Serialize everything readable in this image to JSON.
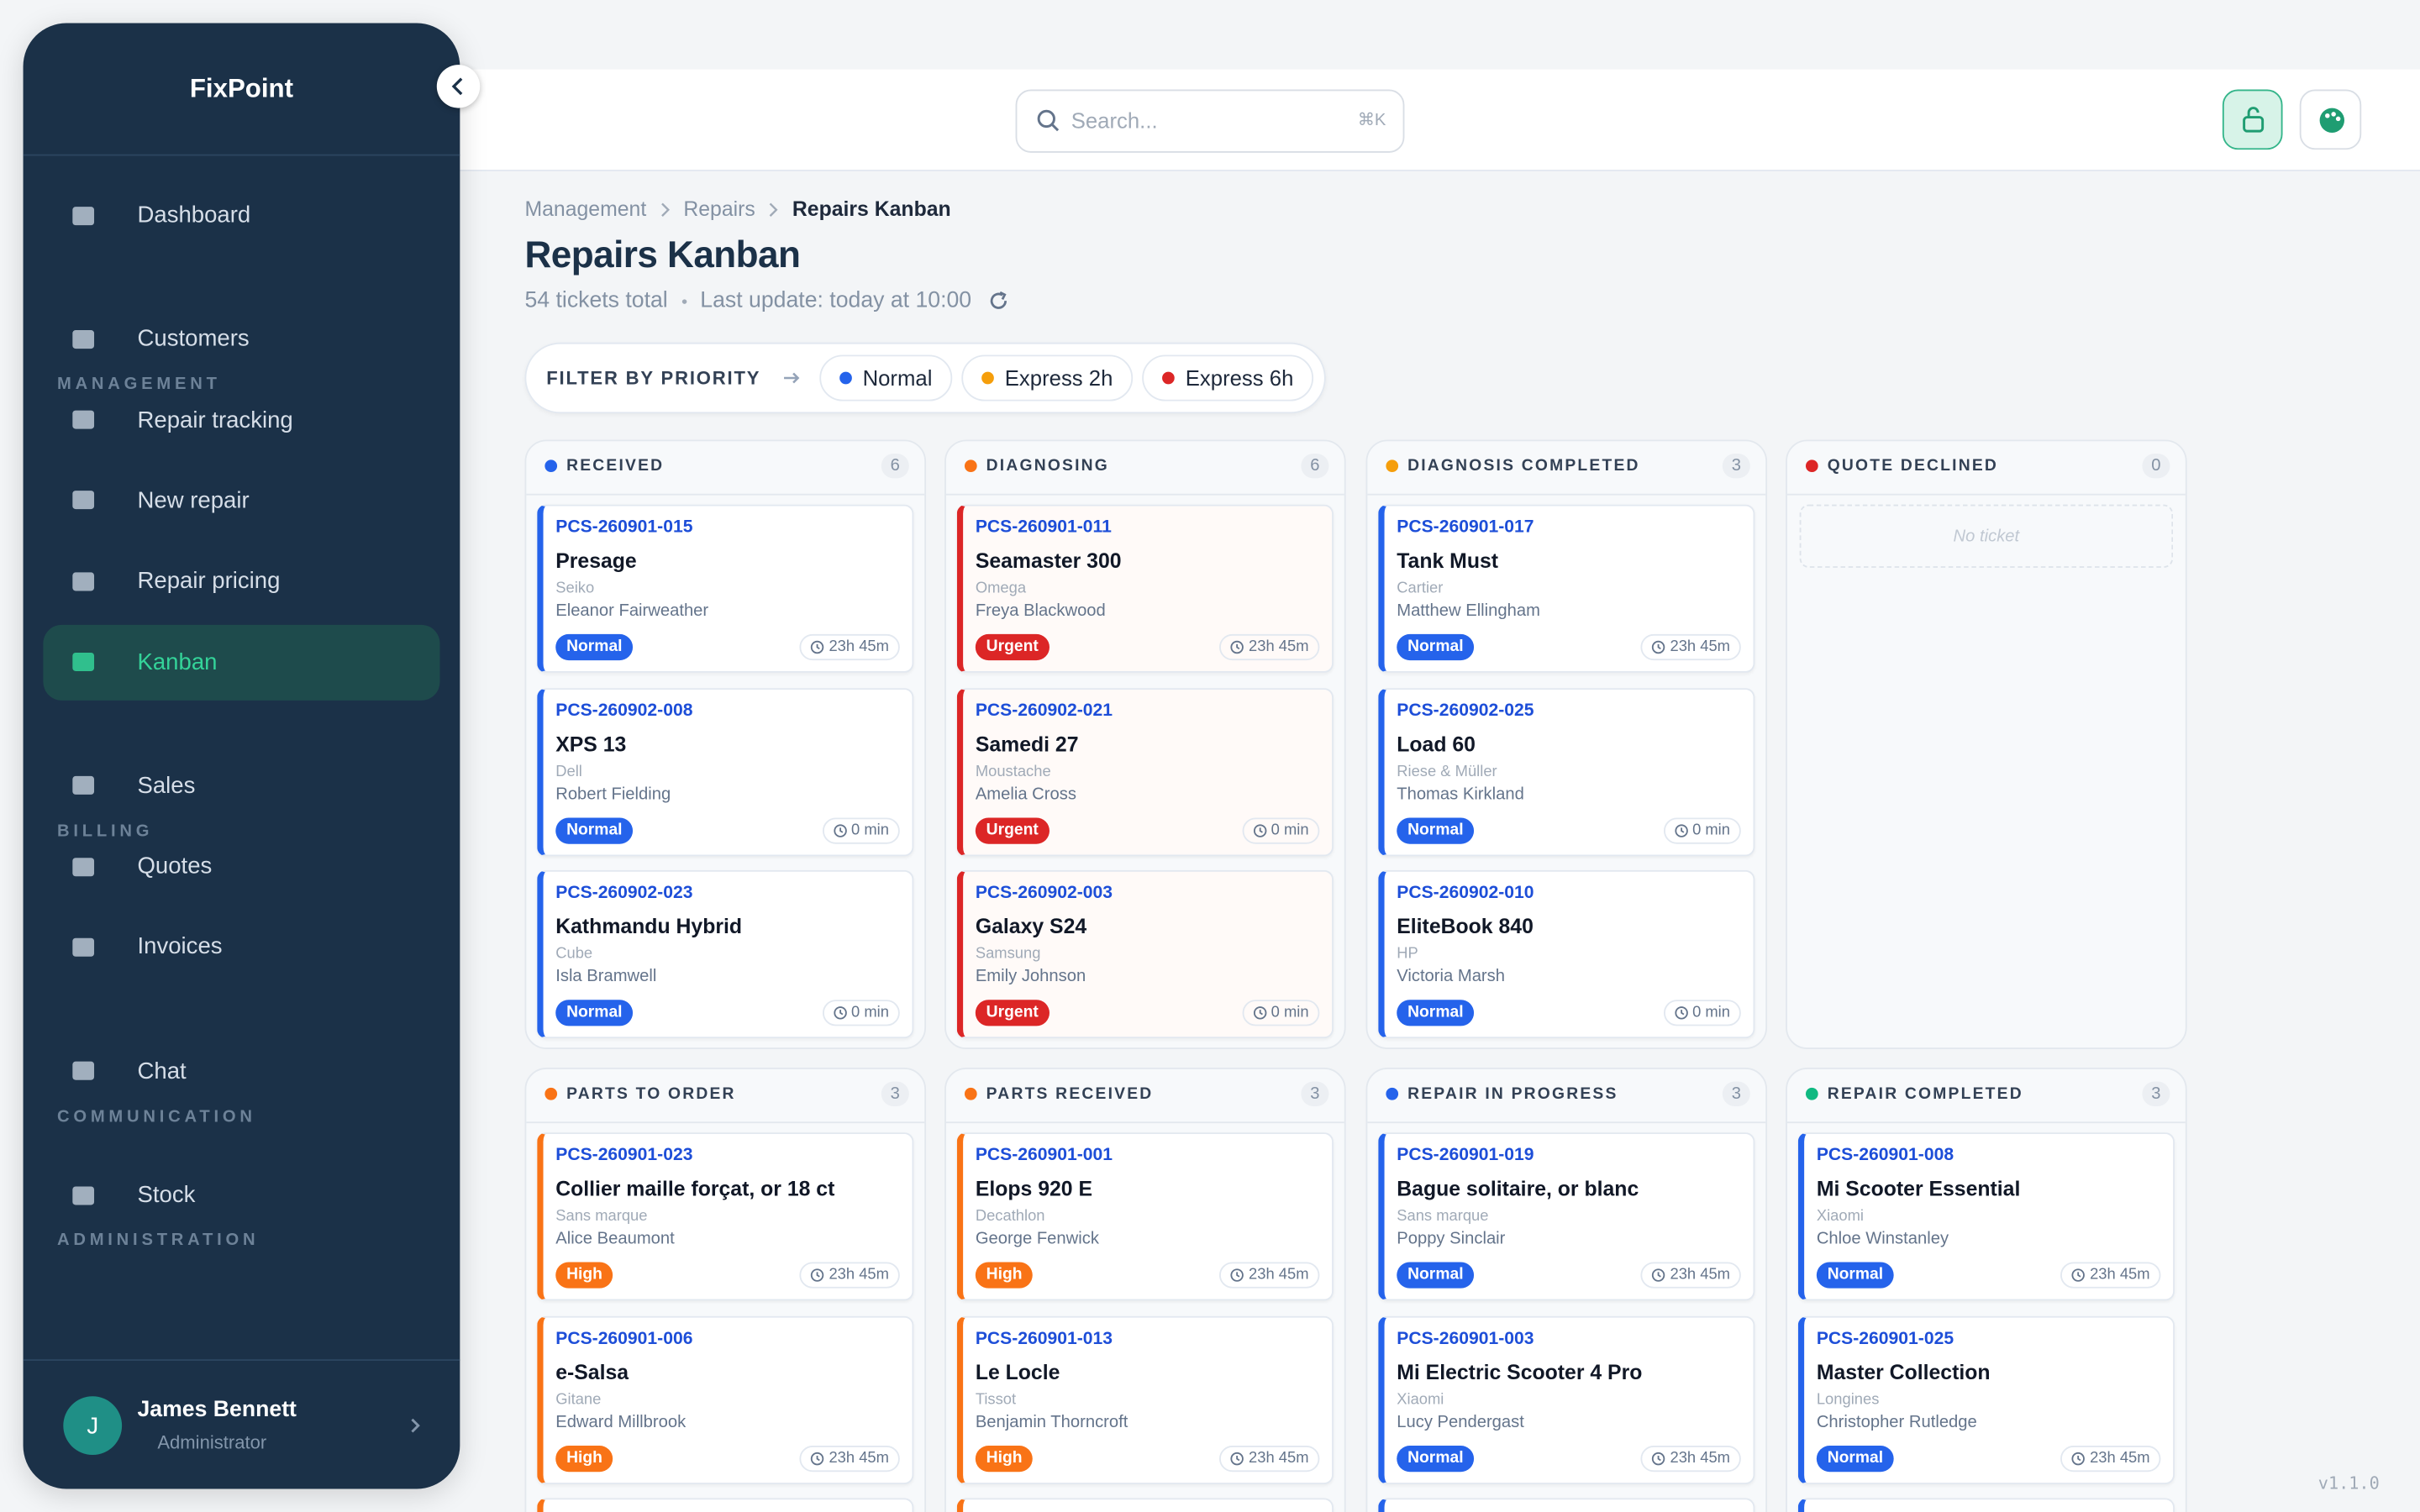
{
  "sidebar": {
    "brand": "FixPoint",
    "nav": [
      {
        "items": [
          {
            "label": "Dashboard"
          }
        ]
      },
      {
        "title": "MANAGEMENT",
        "items": [
          {
            "label": "Customers"
          },
          {
            "label": "Repair tracking"
          },
          {
            "label": "New repair"
          },
          {
            "label": "Repair pricing"
          },
          {
            "label": "Kanban",
            "active": true
          }
        ]
      },
      {
        "title": "BILLING",
        "items": [
          {
            "label": "Sales"
          },
          {
            "label": "Quotes"
          },
          {
            "label": "Invoices"
          }
        ]
      },
      {
        "title": "COMMUNICATION",
        "items": [
          {
            "label": "Chat"
          }
        ]
      },
      {
        "title": "ADMINISTRATION",
        "items": [
          {
            "label": "Stock"
          }
        ]
      }
    ],
    "user": {
      "initial": "J",
      "name": "James Bennett",
      "role": "Administrator"
    }
  },
  "header": {
    "search": {
      "placeholder": "Search...",
      "shortcut": "⌘K"
    }
  },
  "breadcrumb": [
    "Management",
    "Repairs",
    "Repairs Kanban"
  ],
  "title": "Repairs Kanban",
  "subtitle": [
    "54 tickets total",
    "Last update: today at 10:00"
  ],
  "filter": {
    "label": "FILTER BY PRIORITY",
    "options": [
      {
        "label": "Normal",
        "color": "#2563eb"
      },
      {
        "label": "Express 2h",
        "color": "#f59e0b"
      },
      {
        "label": "Express 6h",
        "color": "#dc2626"
      }
    ]
  },
  "priority_colors": {
    "Normal": "#2563eb",
    "Urgent": "#dc2626",
    "High": "#f97316"
  },
  "board": {
    "columns": [
      {
        "title": "RECEIVED",
        "count": 6,
        "color": "#2563eb",
        "cards": [
          {
            "id": "PCS-260901-015",
            "model": "Presage",
            "brand": "Seiko",
            "customer": "Eleanor Fairweather",
            "priority": "Normal",
            "time": "23h 45m"
          },
          {
            "id": "PCS-260902-008",
            "model": "XPS 13",
            "brand": "Dell",
            "customer": "Robert Fielding",
            "priority": "Normal",
            "time": "0 min"
          },
          {
            "id": "PCS-260902-023",
            "model": "Kathmandu Hybrid",
            "brand": "Cube",
            "customer": "Isla Bramwell",
            "priority": "Normal",
            "time": "0 min"
          }
        ]
      },
      {
        "title": "DIAGNOSING",
        "count": 6,
        "color": "#f97316",
        "cards": [
          {
            "id": "PCS-260901-011",
            "model": "Seamaster 300",
            "brand": "Omega",
            "customer": "Freya Blackwood",
            "priority": "Urgent",
            "time": "23h 45m"
          },
          {
            "id": "PCS-260902-021",
            "model": "Samedi 27",
            "brand": "Moustache",
            "customer": "Amelia Cross",
            "priority": "Urgent",
            "time": "0 min"
          },
          {
            "id": "PCS-260902-003",
            "model": "Galaxy S24",
            "brand": "Samsung",
            "customer": "Emily Johnson",
            "priority": "Urgent",
            "time": "0 min"
          }
        ]
      },
      {
        "title": "DIAGNOSIS COMPLETED",
        "count": 3,
        "color": "#f59e0b",
        "cards": [
          {
            "id": "PCS-260901-017",
            "model": "Tank Must",
            "brand": "Cartier",
            "customer": "Matthew Ellingham",
            "priority": "Normal",
            "time": "23h 45m"
          },
          {
            "id": "PCS-260902-025",
            "model": "Load 60",
            "brand": "Riese & Müller",
            "customer": "Thomas Kirkland",
            "priority": "Normal",
            "time": "0 min"
          },
          {
            "id": "PCS-260902-010",
            "model": "EliteBook 840",
            "brand": "HP",
            "customer": "Victoria Marsh",
            "priority": "Normal",
            "time": "0 min"
          }
        ]
      },
      {
        "title": "QUOTE DECLINED",
        "count": 0,
        "color": "#dc2626",
        "empty": "No ticket",
        "cards": []
      },
      {
        "title": "PARTS TO ORDER",
        "count": 3,
        "color": "#f97316",
        "cards": [
          {
            "id": "PCS-260901-023",
            "model": "Collier maille forçat, or 18 ct",
            "brand": "Sans marque",
            "customer": "Alice Beaumont",
            "priority": "High",
            "time": "23h 45m"
          },
          {
            "id": "PCS-260901-006",
            "model": "e-Salsa",
            "brand": "Gitane",
            "customer": "Edward Millbrook",
            "priority": "High",
            "time": "23h 45m"
          }
        ]
      },
      {
        "title": "PARTS RECEIVED",
        "count": 3,
        "color": "#f97316",
        "cards": [
          {
            "id": "PCS-260901-001",
            "model": "Elops 920 E",
            "brand": "Decathlon",
            "customer": "George Fenwick",
            "priority": "High",
            "time": "23h 45m"
          },
          {
            "id": "PCS-260901-013",
            "model": "Le Locle",
            "brand": "Tissot",
            "customer": "Benjamin Thorncroft",
            "priority": "High",
            "time": "23h 45m"
          }
        ]
      },
      {
        "title": "REPAIR IN PROGRESS",
        "count": 3,
        "color": "#2563eb",
        "cards": [
          {
            "id": "PCS-260901-019",
            "model": "Bague solitaire, or blanc",
            "brand": "Sans marque",
            "customer": "Poppy Sinclair",
            "priority": "Normal",
            "time": "23h 45m"
          },
          {
            "id": "PCS-260901-003",
            "model": "Mi Electric Scooter 4 Pro",
            "brand": "Xiaomi",
            "customer": "Lucy Pendergast",
            "priority": "Normal",
            "time": "23h 45m"
          }
        ]
      },
      {
        "title": "REPAIR COMPLETED",
        "count": 3,
        "color": "#10b981",
        "cards": [
          {
            "id": "PCS-260901-008",
            "model": "Mi Scooter Essential",
            "brand": "Xiaomi",
            "customer": "Chloe Winstanley",
            "priority": "Normal",
            "time": "23h 45m"
          },
          {
            "id": "PCS-260901-025",
            "model": "Master Collection",
            "brand": "Longines",
            "customer": "Christopher Rutledge",
            "priority": "Normal",
            "time": "23h 45m"
          }
        ]
      }
    ]
  },
  "version": "v1.1.0"
}
